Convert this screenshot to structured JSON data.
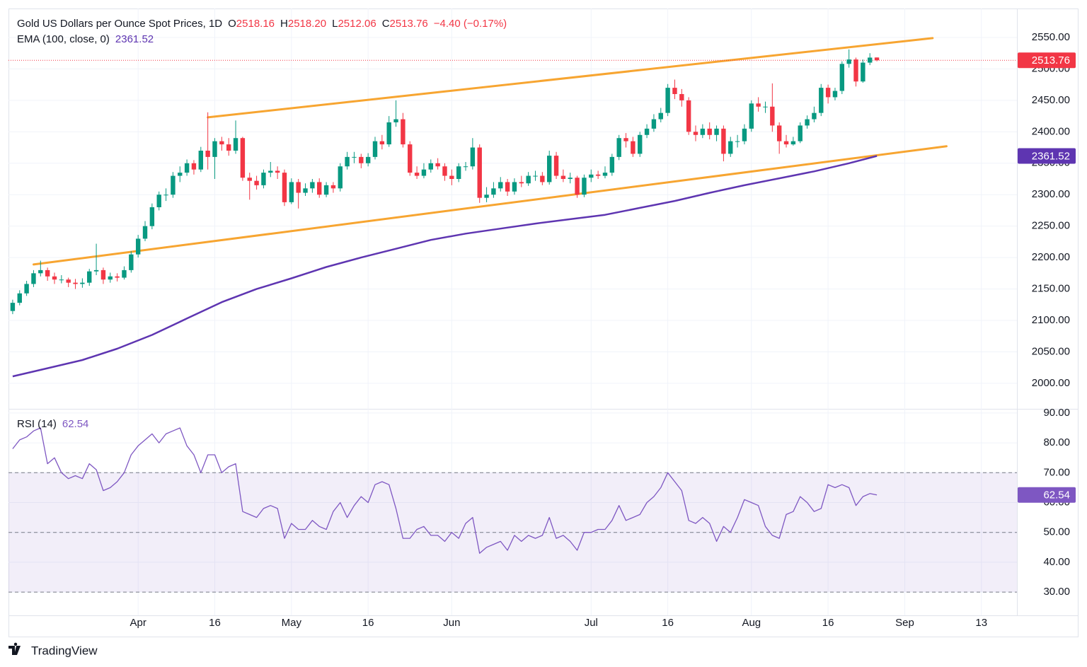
{
  "chart_data": {
    "type": "candlestick",
    "title": "Gold US Dollars per Ounce Spot Prices, 1D",
    "quote": [
      {
        "key": "O",
        "value": "2518.16"
      },
      {
        "key": "H",
        "value": "2518.20"
      },
      {
        "key": "L",
        "value": "2512.06"
      },
      {
        "key": "C",
        "value": "2513.76"
      }
    ],
    "change": "−4.40 (−0.17%)",
    "open": [
      2115,
      2128,
      2143,
      2158,
      2175,
      2180,
      2170,
      2165,
      2165,
      2160,
      2158,
      2160,
      2178,
      2180,
      2165,
      2170,
      2168,
      2180,
      2205,
      2230,
      2250,
      2280,
      2300,
      2300,
      2330,
      2335,
      2350,
      2340,
      2370,
      2360,
      2385,
      2380,
      2370,
      2390,
      2327,
      2322,
      2315,
      2335,
      2338,
      2335,
      2288,
      2320,
      2303,
      2310,
      2320,
      2300,
      2315,
      2310,
      2345,
      2360,
      2360,
      2350,
      2360,
      2385,
      2380,
      2415,
      2420,
      2380,
      2335,
      2330,
      2340,
      2350,
      2345,
      2330,
      2325,
      2345,
      2345,
      2375,
      2295,
      2300,
      2310,
      2320,
      2305,
      2320,
      2318,
      2330,
      2330,
      2320,
      2362,
      2330,
      2325,
      2327,
      2300,
      2327,
      2332,
      2330,
      2335,
      2360,
      2390,
      2385,
      2365,
      2395,
      2405,
      2420,
      2430,
      2470,
      2460,
      2450,
      2400,
      2395,
      2405,
      2395,
      2405,
      2365,
      2385,
      2385,
      2405,
      2445,
      2440,
      2440,
      2410,
      2385,
      2380,
      2385,
      2410,
      2420,
      2430,
      2470,
      2455,
      2465,
      2508,
      2515,
      2480,
      2510,
      2518.16
    ],
    "high": [
      2133,
      2148,
      2163,
      2180,
      2195,
      2184,
      2176,
      2172,
      2168,
      2166,
      2167,
      2182,
      2222,
      2184,
      2176,
      2175,
      2186,
      2210,
      2236,
      2258,
      2286,
      2305,
      2310,
      2336,
      2345,
      2356,
      2355,
      2376,
      2431,
      2390,
      2392,
      2390,
      2418,
      2392,
      2335,
      2330,
      2340,
      2352,
      2345,
      2340,
      2326,
      2325,
      2318,
      2325,
      2326,
      2320,
      2320,
      2350,
      2368,
      2368,
      2365,
      2366,
      2392,
      2395,
      2425,
      2450,
      2430,
      2385,
      2345,
      2350,
      2356,
      2358,
      2350,
      2340,
      2350,
      2352,
      2390,
      2380,
      2312,
      2320,
      2328,
      2325,
      2326,
      2330,
      2336,
      2338,
      2336,
      2370,
      2368,
      2340,
      2335,
      2330,
      2332,
      2340,
      2338,
      2345,
      2365,
      2395,
      2398,
      2392,
      2400,
      2412,
      2428,
      2438,
      2476,
      2483,
      2468,
      2455,
      2410,
      2412,
      2415,
      2410,
      2410,
      2392,
      2395,
      2412,
      2450,
      2455,
      2448,
      2477,
      2415,
      2395,
      2392,
      2415,
      2426,
      2440,
      2476,
      2475,
      2470,
      2512,
      2531,
      2518,
      2515,
      2525,
      2518.2
    ],
    "low": [
      2110,
      2124,
      2139,
      2153,
      2170,
      2163,
      2158,
      2159,
      2153,
      2150,
      2152,
      2155,
      2172,
      2158,
      2160,
      2162,
      2165,
      2176,
      2200,
      2226,
      2245,
      2275,
      2290,
      2295,
      2320,
      2330,
      2332,
      2336,
      2340,
      2325,
      2370,
      2362,
      2365,
      2322,
      2292,
      2308,
      2310,
      2328,
      2325,
      2282,
      2285,
      2278,
      2298,
      2303,
      2295,
      2296,
      2303,
      2305,
      2340,
      2350,
      2342,
      2345,
      2356,
      2372,
      2376,
      2408,
      2375,
      2330,
      2325,
      2326,
      2335,
      2340,
      2322,
      2315,
      2320,
      2338,
      2340,
      2287,
      2288,
      2295,
      2305,
      2298,
      2300,
      2312,
      2314,
      2322,
      2315,
      2316,
      2325,
      2320,
      2318,
      2295,
      2296,
      2320,
      2325,
      2326,
      2330,
      2355,
      2375,
      2360,
      2360,
      2390,
      2400,
      2415,
      2425,
      2452,
      2440,
      2395,
      2385,
      2390,
      2388,
      2385,
      2353,
      2360,
      2375,
      2380,
      2400,
      2432,
      2430,
      2400,
      2365,
      2375,
      2378,
      2382,
      2405,
      2415,
      2425,
      2445,
      2450,
      2460,
      2502,
      2472,
      2478,
      2506,
      2512.06
    ],
    "close": [
      2128,
      2143,
      2158,
      2175,
      2180,
      2170,
      2165,
      2165,
      2160,
      2158,
      2160,
      2178,
      2180,
      2165,
      2170,
      2168,
      2180,
      2205,
      2230,
      2250,
      2280,
      2300,
      2300,
      2330,
      2335,
      2350,
      2340,
      2370,
      2360,
      2385,
      2380,
      2370,
      2390,
      2327,
      2322,
      2315,
      2335,
      2338,
      2335,
      2288,
      2320,
      2303,
      2310,
      2320,
      2300,
      2315,
      2310,
      2345,
      2360,
      2360,
      2350,
      2360,
      2385,
      2380,
      2415,
      2420,
      2380,
      2335,
      2330,
      2340,
      2350,
      2345,
      2330,
      2325,
      2345,
      2345,
      2375,
      2295,
      2300,
      2310,
      2320,
      2305,
      2320,
      2318,
      2330,
      2330,
      2320,
      2362,
      2330,
      2325,
      2327,
      2300,
      2327,
      2332,
      2330,
      2335,
      2360,
      2390,
      2385,
      2365,
      2395,
      2405,
      2420,
      2430,
      2470,
      2460,
      2450,
      2400,
      2395,
      2405,
      2395,
      2405,
      2365,
      2385,
      2385,
      2405,
      2445,
      2440,
      2440,
      2410,
      2385,
      2380,
      2385,
      2410,
      2420,
      2430,
      2470,
      2455,
      2465,
      2508,
      2515,
      2480,
      2510,
      2518,
      2513.76
    ],
    "up_color": "#089981",
    "down_color": "#f23645",
    "xlim": [
      -0.6,
      144.1
    ],
    "xticks": [
      {
        "value": 18,
        "label": "Apr"
      },
      {
        "value": 29,
        "label": "16"
      },
      {
        "value": 40,
        "label": "May"
      },
      {
        "value": 51,
        "label": "16"
      },
      {
        "value": 63,
        "label": "Jun"
      },
      {
        "value": 83,
        "label": "Jul"
      },
      {
        "value": 94,
        "label": "16"
      },
      {
        "value": 106,
        "label": "Aug"
      },
      {
        "value": 117,
        "label": "16"
      },
      {
        "value": 128,
        "label": "Sep"
      },
      {
        "value": 139,
        "label": "13"
      }
    ],
    "ylim": [
      1959.4,
      2596.1
    ],
    "yticks": [
      {
        "value": 2000,
        "label": "2000.00"
      },
      {
        "value": 2050,
        "label": "2050.00"
      },
      {
        "value": 2100,
        "label": "2100.00"
      },
      {
        "value": 2150,
        "label": "2150.00"
      },
      {
        "value": 2200,
        "label": "2200.00"
      },
      {
        "value": 2250,
        "label": "2250.00"
      },
      {
        "value": 2300,
        "label": "2300.00"
      },
      {
        "value": 2350,
        "label": "2350.00"
      },
      {
        "value": 2400,
        "label": "2400.00"
      },
      {
        "value": 2450,
        "label": "2450.00"
      },
      {
        "value": 2500,
        "label": "2500.00"
      },
      {
        "value": 2550,
        "label": "2550.00"
      }
    ],
    "grid": true,
    "ema": {
      "name": "EMA (100, close, 0)",
      "color": "#5e35b1",
      "x": [
        0,
        5,
        10,
        15,
        20,
        25,
        30,
        35,
        40,
        45,
        50,
        55,
        60,
        65,
        70,
        75,
        80,
        85,
        90,
        95,
        100,
        105,
        110,
        115,
        120,
        124
      ],
      "values": [
        2011,
        2024,
        2037,
        2055,
        2077,
        2103,
        2129,
        2150,
        2167,
        2185,
        2200,
        2214,
        2228,
        2238,
        2246,
        2254,
        2261,
        2268,
        2279,
        2290,
        2303,
        2315,
        2326,
        2337,
        2350,
        2361.52
      ]
    },
    "trendlines": [
      {
        "color": "#f7a531",
        "x": [
          28,
          132
        ],
        "values": [
          2423,
          2549
        ]
      },
      {
        "color": "#f7a531",
        "x": [
          3,
          134
        ],
        "values": [
          2189,
          2377
        ]
      }
    ],
    "rsi": {
      "name": "RSI (14)",
      "color": "#7e57c2",
      "values": [
        78,
        81,
        82,
        84,
        85,
        73,
        75,
        70,
        68,
        69,
        68,
        73,
        71,
        64,
        65,
        67,
        70,
        76,
        79,
        81,
        83,
        80,
        83,
        84,
        85,
        79,
        76,
        70,
        76,
        76,
        70,
        72,
        73,
        57,
        56,
        55,
        58,
        59,
        58,
        48,
        53,
        51,
        51,
        54,
        52,
        51,
        57,
        60,
        55,
        59,
        62,
        60,
        66,
        67,
        66,
        58,
        48,
        48,
        51,
        52,
        49,
        49,
        47,
        50,
        48,
        53,
        55,
        43,
        45,
        46,
        47,
        44,
        49,
        47,
        49,
        48,
        49,
        55,
        48,
        49,
        47,
        44,
        50,
        50,
        51,
        51,
        54,
        59,
        54,
        55,
        56,
        60,
        62,
        65,
        70,
        67,
        64,
        54,
        53,
        55,
        53,
        47,
        52,
        50,
        55,
        61,
        60,
        59,
        52,
        49,
        48,
        56,
        57,
        62,
        60,
        57,
        58,
        66,
        65,
        66,
        65,
        59,
        62,
        63,
        62.54
      ],
      "ylim": [
        22.2,
        91.4
      ],
      "yticks": [
        {
          "value": 30,
          "label": "30.00"
        },
        {
          "value": 40,
          "label": "40.00"
        },
        {
          "value": 50,
          "label": "50.00"
        },
        {
          "value": 60,
          "label": "60.00"
        },
        {
          "value": 70,
          "label": "70.00"
        },
        {
          "value": 80,
          "label": "80.00"
        },
        {
          "value": 90,
          "label": "90.00"
        }
      ],
      "band": [
        30,
        70
      ],
      "midline": 50
    }
  },
  "brand": "TradingView"
}
